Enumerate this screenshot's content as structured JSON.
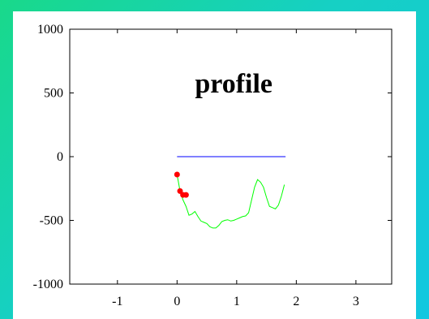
{
  "chart_data": {
    "type": "line",
    "title": "profile",
    "xlabel": "",
    "ylabel": "",
    "xlim": [
      -1.8,
      3.6
    ],
    "ylim": [
      -1000,
      1000
    ],
    "x_ticks": [
      -1,
      0,
      1,
      2,
      3
    ],
    "y_ticks": [
      1000,
      500,
      0,
      -500,
      -1000
    ],
    "grid": false,
    "series": [
      {
        "color": "#0000ff",
        "x": [
          0,
          1.82
        ],
        "y": [
          0,
          0
        ]
      },
      {
        "color": "#00ff00",
        "x": [
          0.0,
          0.05,
          0.1,
          0.15,
          0.2,
          0.25,
          0.3,
          0.35,
          0.4,
          0.45,
          0.5,
          0.55,
          0.6,
          0.65,
          0.7,
          0.75,
          0.8,
          0.85,
          0.9,
          0.95,
          1.0,
          1.05,
          1.1,
          1.15,
          1.2,
          1.25,
          1.3,
          1.35,
          1.4,
          1.45,
          1.5,
          1.55,
          1.6,
          1.65,
          1.7,
          1.75,
          1.8
        ],
        "y": [
          -140,
          -270,
          -340,
          -390,
          -460,
          -450,
          -430,
          -470,
          -505,
          -515,
          -525,
          -550,
          -560,
          -560,
          -540,
          -510,
          -500,
          -495,
          -505,
          -500,
          -490,
          -480,
          -470,
          -465,
          -440,
          -340,
          -240,
          -180,
          -200,
          -240,
          -320,
          -390,
          -400,
          -410,
          -380,
          -310,
          -220
        ]
      },
      {
        "color": "#ff0000",
        "type": "scatter",
        "x": [
          0.0,
          0.05,
          0.1,
          0.15
        ],
        "y": [
          -140,
          -270,
          -300,
          -300
        ]
      }
    ]
  }
}
